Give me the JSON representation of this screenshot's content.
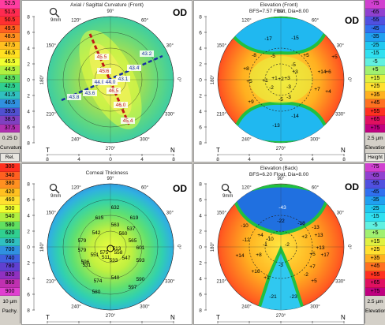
{
  "panels": {
    "tl": {
      "title": "Axial / Sagittal Curvature (Front)",
      "od": "OD",
      "mag": "9mm"
    },
    "tr": {
      "title": "Elevation (Front)",
      "subtitle": "BFS=7.57 Float, Dia=8.00",
      "od": "OD"
    },
    "bl": {
      "title": "Corneal Thickness",
      "od": "OD",
      "mag": "9mm"
    },
    "br": {
      "title": "Elevation (Back)",
      "subtitle": "BFS=6.20 Float, Dia=8.00",
      "od": "OD",
      "mag": "9mm"
    }
  },
  "scales": {
    "curvature": {
      "values": [
        "52.5",
        "51.5",
        "50.5",
        "49.5",
        "48.5",
        "47.5",
        "46.5",
        "45.5",
        "44.5",
        "43.5",
        "42.5",
        "41.5",
        "40.5",
        "39.5",
        "38.5",
        "37.5"
      ],
      "colors": [
        "#ff3ca0",
        "#ff2a50",
        "#ff3030",
        "#ff6020",
        "#ff9020",
        "#ffc020",
        "#ffe020",
        "#f0ff30",
        "#b0f040",
        "#60e060",
        "#30d090",
        "#30c0c0",
        "#3090e0",
        "#5050d0",
        "#8040c0",
        "#b030b0"
      ],
      "step": "0.25 D",
      "label": "Curvature",
      "mode": "Rel."
    },
    "elev_front": {
      "values": [
        "-75",
        "-65",
        "-55",
        "-45",
        "-35",
        "-25",
        "-15",
        "-5",
        "+5",
        "+15",
        "+25",
        "+35",
        "+45",
        "+55",
        "+65",
        "+75"
      ],
      "colors": [
        "#d040d0",
        "#9040d0",
        "#5050e0",
        "#3070f0",
        "#20a0f0",
        "#20c8f0",
        "#30e0f0",
        "#60f0e0",
        "#a0f070",
        "#e0f040",
        "#ffe030",
        "#ffb020",
        "#ff7020",
        "#ff3020",
        "#e01060",
        "#c00080"
      ],
      "step": "2.5 µm",
      "label": "Elevation",
      "mode": "Height"
    },
    "thickness": {
      "values": [
        "300",
        "340",
        "380",
        "420",
        "460",
        "500",
        "540",
        "580",
        "620",
        "660",
        "700",
        "740",
        "780",
        "820",
        "860",
        "900"
      ],
      "colors": [
        "#ff3020",
        "#ff6020",
        "#ff9020",
        "#ffc020",
        "#ffe030",
        "#f0ff30",
        "#b0f040",
        "#60e060",
        "#30d090",
        "#30c0c0",
        "#3090e0",
        "#4060e0",
        "#6040d0",
        "#9030c0",
        "#c030b0",
        "#e040d0"
      ],
      "step": "10 µm",
      "label": "Pachy."
    },
    "elev_back": {
      "values": [
        "-75",
        "-65",
        "-55",
        "-45",
        "-35",
        "-25",
        "-15",
        "-5",
        "+5",
        "+15",
        "+25",
        "+35",
        "+45",
        "+55",
        "+65",
        "+75"
      ],
      "colors": [
        "#d040d0",
        "#9040d0",
        "#5050e0",
        "#3070f0",
        "#20a0f0",
        "#20c8f0",
        "#30e0f0",
        "#60f0e0",
        "#a0f070",
        "#e0f040",
        "#ffe030",
        "#ffb020",
        "#ff7020",
        "#ff3020",
        "#e01060",
        "#c00080"
      ],
      "step": "2.5 µm",
      "label": "Elevation"
    }
  },
  "axis": {
    "top": "90°",
    "bottom": "270°",
    "left": "180°",
    "right": "0°",
    "a120": "120°",
    "a60": "60°",
    "a150": "150°",
    "a30": "30°",
    "a210": "210°",
    "a330": "330°",
    "a240": "240°",
    "a300": "300°",
    "T": "T",
    "N": "N",
    "yticks": [
      "8",
      "6",
      "4",
      "2",
      "0",
      "2",
      "4",
      "6",
      "8"
    ],
    "xticks": [
      "8",
      "4",
      "0",
      "4",
      "8"
    ]
  },
  "values": {
    "curv": [
      "44.0",
      "45.6",
      "45.5",
      "43.2",
      "43.4",
      "43.1",
      "44.0",
      "43.6",
      "43.8",
      "46.5",
      "46.0",
      "45.4"
    ],
    "front": [
      "-17",
      "-15",
      "-8",
      "-5",
      "+5",
      "+6",
      "+14",
      "+5",
      "+5",
      "+9",
      "-2",
      "-3",
      "+1",
      "+3",
      "+3",
      "-3",
      "+2",
      "+4",
      "+7",
      "-5",
      "+1",
      "-13",
      "-14",
      "-5",
      "+8"
    ],
    "pachy": [
      "632",
      "615",
      "619",
      "563",
      "560",
      "542",
      "537",
      "579",
      "579",
      "531",
      "551",
      "511",
      "558",
      "533",
      "547",
      "596",
      "593",
      "601",
      "565",
      "513",
      "575",
      "574",
      "580",
      "597",
      "590",
      "540",
      "631",
      "645"
    ],
    "back": [
      "-43",
      "-22",
      "-18",
      "-10",
      "+4",
      "-12",
      "+13",
      "-10",
      "+2",
      "+14",
      "+8",
      "+17",
      "+5",
      "+13",
      "-1",
      "-2",
      "+16",
      "+1",
      "-2",
      "+7",
      "+5",
      "-21",
      "-23",
      "-3",
      "-13"
    ]
  }
}
